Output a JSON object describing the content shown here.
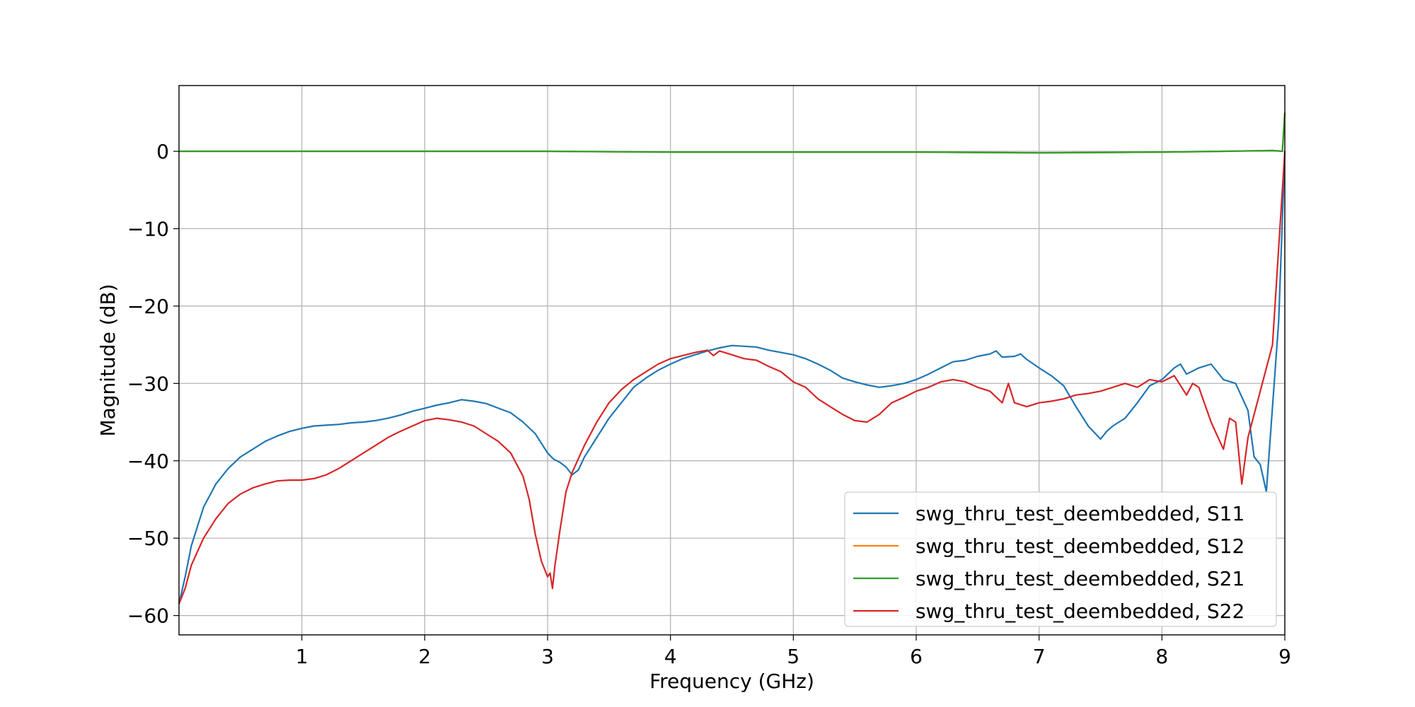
{
  "chart_data": {
    "type": "line",
    "xlabel": "Frequency (GHz)",
    "ylabel": "Magnitude (dB)",
    "xlim": [
      0,
      9
    ],
    "ylim": [
      -62.5,
      8.5
    ],
    "xticks": [
      1,
      2,
      3,
      4,
      5,
      6,
      7,
      8,
      9
    ],
    "xtick_labels": [
      "1",
      "2",
      "3",
      "4",
      "5",
      "6",
      "7",
      "8",
      "9"
    ],
    "yticks": [
      0,
      -10,
      -20,
      -30,
      -40,
      -50,
      -60
    ],
    "ytick_labels": [
      "0",
      "−10",
      "−20",
      "−30",
      "−40",
      "−50",
      "−60"
    ],
    "grid": true,
    "legend_position": "lower-right",
    "series": [
      {
        "name": "swg_thru_test_deembedded, S11",
        "color": "#1f77b4",
        "x": [
          0.0,
          0.05,
          0.1,
          0.2,
          0.3,
          0.4,
          0.5,
          0.6,
          0.7,
          0.8,
          0.9,
          1.0,
          1.1,
          1.2,
          1.3,
          1.4,
          1.5,
          1.6,
          1.7,
          1.8,
          1.9,
          2.0,
          2.1,
          2.2,
          2.3,
          2.4,
          2.5,
          2.6,
          2.7,
          2.8,
          2.9,
          3.0,
          3.05,
          3.1,
          3.15,
          3.2,
          3.25,
          3.3,
          3.4,
          3.5,
          3.6,
          3.7,
          3.8,
          3.9,
          4.0,
          4.1,
          4.2,
          4.3,
          4.4,
          4.5,
          4.6,
          4.7,
          4.8,
          4.9,
          5.0,
          5.1,
          5.2,
          5.3,
          5.4,
          5.5,
          5.6,
          5.7,
          5.8,
          5.9,
          6.0,
          6.1,
          6.2,
          6.3,
          6.4,
          6.5,
          6.6,
          6.65,
          6.7,
          6.8,
          6.85,
          6.9,
          7.0,
          7.1,
          7.2,
          7.3,
          7.4,
          7.5,
          7.55,
          7.6,
          7.7,
          7.8,
          7.9,
          8.0,
          8.1,
          8.15,
          8.2,
          8.3,
          8.4,
          8.5,
          8.6,
          8.7,
          8.75,
          8.8,
          8.85,
          8.9,
          8.95,
          9.0
        ],
        "y": [
          -58.5,
          -55,
          -51,
          -46,
          -43,
          -41,
          -39.5,
          -38.5,
          -37.5,
          -36.8,
          -36.2,
          -35.8,
          -35.5,
          -35.4,
          -35.3,
          -35.1,
          -35.0,
          -34.8,
          -34.5,
          -34.1,
          -33.6,
          -33.2,
          -32.8,
          -32.5,
          -32.1,
          -32.3,
          -32.6,
          -33.2,
          -33.8,
          -35,
          -36.5,
          -39,
          -39.8,
          -40.2,
          -40.8,
          -41.8,
          -41.2,
          -39.5,
          -37,
          -34.5,
          -32.5,
          -30.5,
          -29.3,
          -28.3,
          -27.5,
          -26.8,
          -26.3,
          -25.8,
          -25.4,
          -25.1,
          -25.2,
          -25.3,
          -25.7,
          -26.0,
          -26.3,
          -26.8,
          -27.5,
          -28.3,
          -29.3,
          -29.8,
          -30.2,
          -30.5,
          -30.3,
          -30.0,
          -29.5,
          -28.8,
          -28.0,
          -27.2,
          -27.0,
          -26.5,
          -26.2,
          -25.8,
          -26.6,
          -26.5,
          -26.2,
          -26.9,
          -28.0,
          -29.0,
          -30.3,
          -33.0,
          -35.5,
          -37.2,
          -36.2,
          -35.5,
          -34.5,
          -32.5,
          -30.3,
          -29.5,
          -28.0,
          -27.5,
          -28.8,
          -28.0,
          -27.5,
          -29.5,
          -30.0,
          -33.5,
          -39.5,
          -40.5,
          -44.0,
          -33.0,
          -22.0,
          0.0
        ]
      },
      {
        "name": "swg_thru_test_deembedded, S12",
        "color": "#ff7f0e",
        "x": [
          0.0,
          1.0,
          2.0,
          3.0,
          4.0,
          5.0,
          6.0,
          7.0,
          8.0,
          8.5,
          8.9,
          8.98,
          9.0
        ],
        "y": [
          0.0,
          0.0,
          0.0,
          0.0,
          -0.1,
          -0.1,
          -0.1,
          -0.2,
          -0.1,
          0.0,
          0.1,
          0.0,
          5.0
        ]
      },
      {
        "name": "swg_thru_test_deembedded, S21",
        "color": "#2ca02c",
        "x": [
          0.0,
          1.0,
          2.0,
          3.0,
          4.0,
          5.0,
          6.0,
          7.0,
          8.0,
          8.5,
          8.9,
          8.98,
          9.0
        ],
        "y": [
          0.0,
          0.0,
          0.0,
          0.0,
          -0.1,
          -0.1,
          -0.1,
          -0.2,
          -0.1,
          0.0,
          0.1,
          0.0,
          5.0
        ]
      },
      {
        "name": "swg_thru_test_deembedded, S22",
        "color": "#d62728",
        "x": [
          0.0,
          0.05,
          0.1,
          0.2,
          0.3,
          0.4,
          0.5,
          0.6,
          0.7,
          0.8,
          0.9,
          1.0,
          1.1,
          1.2,
          1.3,
          1.4,
          1.5,
          1.6,
          1.7,
          1.8,
          1.9,
          2.0,
          2.1,
          2.2,
          2.3,
          2.4,
          2.5,
          2.6,
          2.7,
          2.8,
          2.85,
          2.9,
          2.95,
          3.0,
          3.02,
          3.04,
          3.06,
          3.1,
          3.15,
          3.2,
          3.3,
          3.4,
          3.5,
          3.6,
          3.7,
          3.8,
          3.9,
          4.0,
          4.1,
          4.2,
          4.3,
          4.35,
          4.4,
          4.5,
          4.6,
          4.7,
          4.8,
          4.9,
          5.0,
          5.1,
          5.2,
          5.3,
          5.4,
          5.5,
          5.6,
          5.7,
          5.8,
          5.9,
          6.0,
          6.1,
          6.2,
          6.3,
          6.4,
          6.5,
          6.6,
          6.7,
          6.75,
          6.8,
          6.9,
          7.0,
          7.1,
          7.2,
          7.3,
          7.4,
          7.5,
          7.6,
          7.7,
          7.8,
          7.9,
          8.0,
          8.1,
          8.2,
          8.25,
          8.3,
          8.4,
          8.5,
          8.55,
          8.6,
          8.65,
          8.7,
          8.8,
          8.9,
          9.0
        ],
        "y": [
          -58.5,
          -56.5,
          -53.5,
          -50,
          -47.5,
          -45.5,
          -44.3,
          -43.5,
          -43.0,
          -42.6,
          -42.5,
          -42.5,
          -42.3,
          -41.8,
          -41.0,
          -40.0,
          -39.0,
          -38.0,
          -37.0,
          -36.2,
          -35.5,
          -34.8,
          -34.5,
          -34.7,
          -35.0,
          -35.5,
          -36.5,
          -37.5,
          -39.0,
          -42.0,
          -45.0,
          -49.5,
          -53.0,
          -55.0,
          -54.5,
          -56.5,
          -53.5,
          -49.0,
          -44.0,
          -41.5,
          -38.0,
          -35.0,
          -32.5,
          -30.8,
          -29.5,
          -28.5,
          -27.5,
          -26.8,
          -26.4,
          -26.0,
          -25.7,
          -26.4,
          -25.8,
          -26.3,
          -26.8,
          -27.0,
          -27.8,
          -28.5,
          -29.8,
          -30.5,
          -32.0,
          -33.0,
          -34.0,
          -34.8,
          -35.0,
          -34.0,
          -32.5,
          -31.8,
          -31.0,
          -30.5,
          -29.8,
          -29.5,
          -29.8,
          -30.5,
          -31.0,
          -32.5,
          -30.0,
          -32.5,
          -33.0,
          -32.5,
          -32.3,
          -32.0,
          -31.5,
          -31.3,
          -31.0,
          -30.5,
          -30.0,
          -30.5,
          -29.5,
          -29.8,
          -29.0,
          -31.5,
          -30.0,
          -30.5,
          -35.0,
          -38.5,
          -34.5,
          -35.0,
          -43.0,
          -37.0,
          -31.0,
          -25.0,
          0.0
        ]
      }
    ]
  }
}
